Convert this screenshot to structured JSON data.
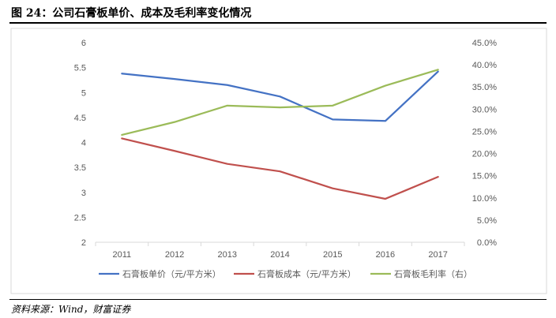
{
  "figure": {
    "title": "图 24：公司石膏板单价、成本及毛利率变化情况",
    "source": "资料来源：Wind，财富证券"
  },
  "chart_data": {
    "type": "line",
    "categories": [
      "2011",
      "2012",
      "2013",
      "2014",
      "2015",
      "2016",
      "2017"
    ],
    "y_left": {
      "ticks": [
        "2",
        "2.5",
        "3",
        "3.5",
        "4",
        "4.5",
        "5",
        "5.5",
        "6"
      ],
      "ylim": [
        2,
        6
      ]
    },
    "y_right": {
      "ticks": [
        "0.0%",
        "5.0%",
        "10.0%",
        "15.0%",
        "20.0%",
        "25.0%",
        "30.0%",
        "35.0%",
        "40.0%",
        "45.0%"
      ],
      "ylim": [
        0,
        45
      ]
    },
    "series": [
      {
        "name": "石膏板单价（元/平方米）",
        "axis": "left",
        "color": "#4472C4",
        "values": [
          5.38,
          5.27,
          5.15,
          4.92,
          4.46,
          4.43,
          5.42
        ]
      },
      {
        "name": "石膏板成本（元/平方米）",
        "axis": "left",
        "color": "#C0504D",
        "values": [
          4.08,
          3.83,
          3.57,
          3.42,
          3.08,
          2.87,
          3.31
        ]
      },
      {
        "name": "石膏板毛利率（右）",
        "axis": "right",
        "color": "#9BBB59",
        "values": [
          24.2,
          27.1,
          30.8,
          30.4,
          30.8,
          35.3,
          38.9
        ]
      }
    ],
    "grid": false,
    "legend": "bottom"
  }
}
